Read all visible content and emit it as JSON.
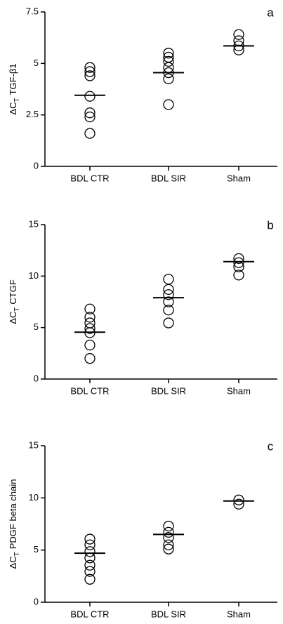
{
  "chart_data": [
    {
      "type": "dotplot",
      "panel_label": "a",
      "ylabel": [
        "ΔC",
        "T",
        "TGF-β1"
      ],
      "categories": [
        "BDL  CTR",
        "BDL SIR",
        "Sham"
      ],
      "values": [
        [
          4.8,
          4.6,
          4.4,
          3.4,
          2.6,
          2.4,
          1.6
        ],
        [
          5.5,
          5.3,
          5.1,
          4.8,
          4.55,
          4.25,
          3.0
        ],
        [
          6.4,
          6.1,
          5.85,
          5.65
        ]
      ],
      "means": [
        3.45,
        4.55,
        5.85
      ],
      "ylim": [
        0,
        7.5
      ],
      "yticks": [
        0,
        2.5,
        5,
        7.5
      ],
      "color": "#000000"
    },
    {
      "type": "dotplot",
      "panel_label": "b",
      "ylabel": [
        "ΔC",
        "T",
        "CTGF"
      ],
      "categories": [
        "BDL  CTR",
        "BDL SIR",
        "Sham"
      ],
      "values": [
        [
          6.8,
          6.0,
          5.45,
          4.9,
          4.5,
          3.3,
          2.0
        ],
        [
          9.7,
          8.7,
          8.2,
          7.5,
          6.7,
          5.45
        ],
        [
          11.7,
          11.3,
          10.9,
          10.1
        ]
      ],
      "means": [
        4.55,
        7.9,
        11.4
      ],
      "ylim": [
        0,
        15
      ],
      "yticks": [
        0,
        5,
        10,
        15
      ],
      "color": "#000000"
    },
    {
      "type": "dotplot",
      "panel_label": "c",
      "ylabel": [
        "ΔC",
        "T",
        "PDGF beta chain"
      ],
      "categories": [
        "BDL  CTR",
        "BDL SIR",
        "Sham"
      ],
      "values": [
        [
          6.05,
          5.5,
          4.85,
          4.25,
          3.55,
          2.95,
          2.2
        ],
        [
          7.3,
          6.7,
          6.2,
          5.5,
          5.1
        ],
        [
          9.8,
          9.4
        ]
      ],
      "means": [
        4.7,
        6.5,
        9.7
      ],
      "ylim": [
        0,
        15
      ],
      "yticks": [
        0,
        5,
        10,
        15
      ],
      "color": "#000000"
    }
  ]
}
